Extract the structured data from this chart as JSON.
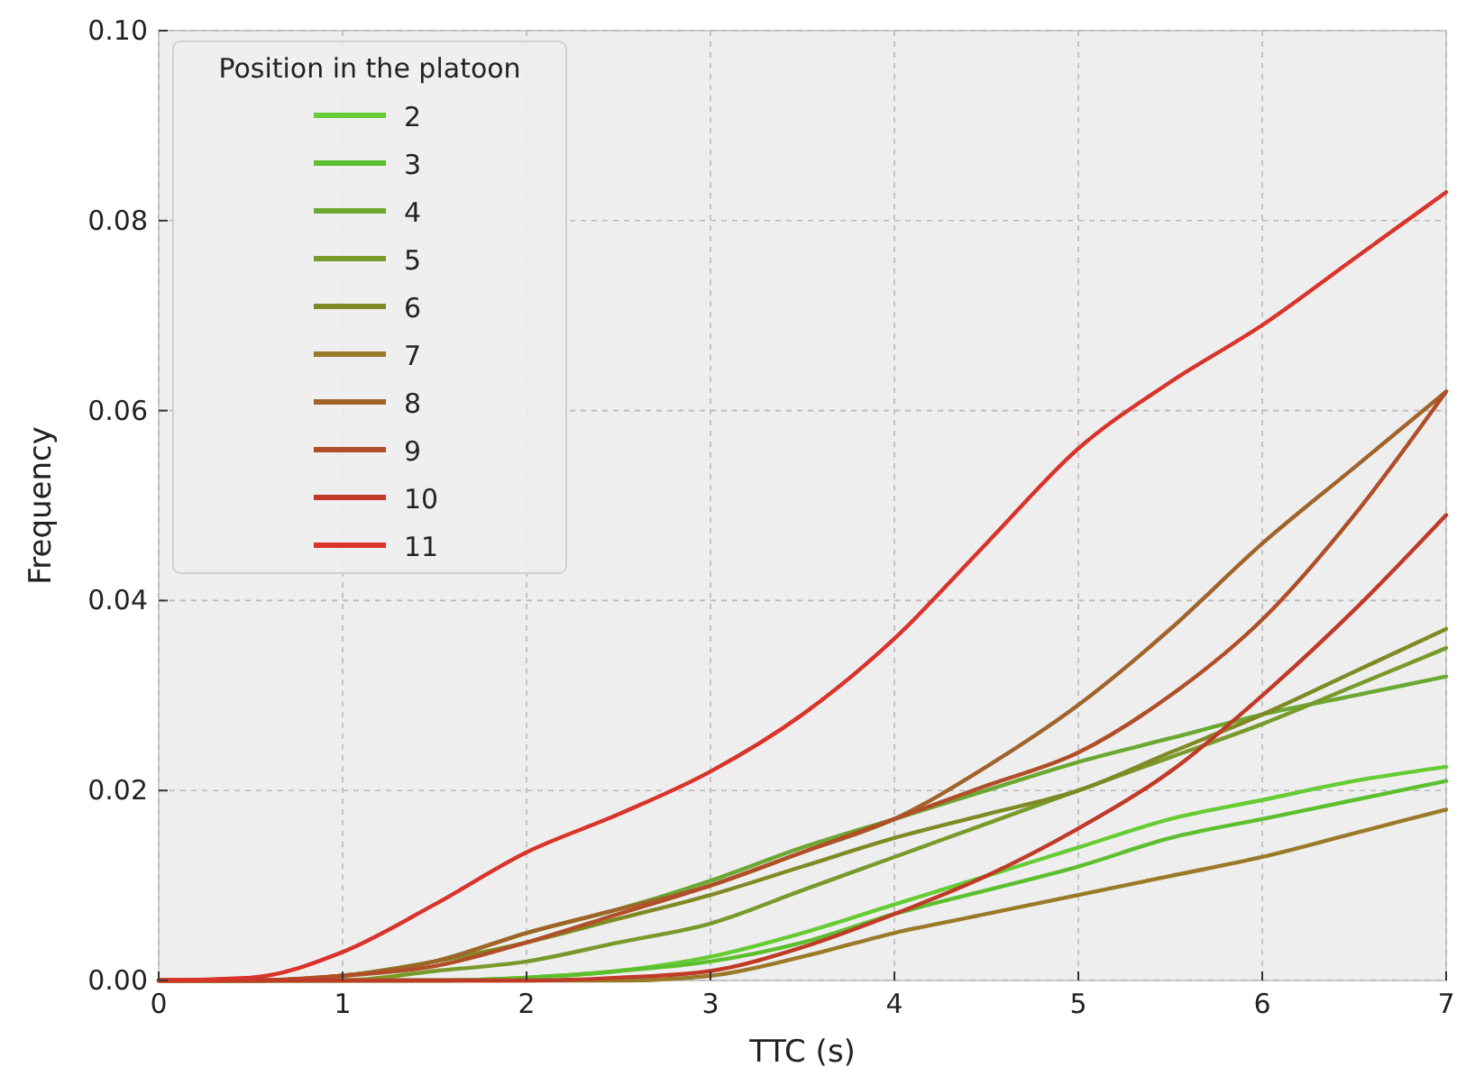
{
  "chart_data": {
    "type": "line",
    "xlabel": "TTC (s)",
    "ylabel": "Frequency",
    "legend_title": "Position in the platoon",
    "legend": "top left",
    "grid": true,
    "line_style": "solid",
    "marker": "none",
    "x": [
      0,
      0.5,
      1,
      1.5,
      2,
      2.5,
      3,
      3.5,
      4,
      4.5,
      5,
      5.5,
      6,
      6.5,
      7
    ],
    "xlim": [
      0,
      7
    ],
    "xticks": [
      0,
      1,
      2,
      3,
      4,
      5,
      6,
      7
    ],
    "ylim": [
      0,
      0.1
    ],
    "yticks": [
      {
        "value": 0,
        "label": "0.00"
      },
      {
        "value": 0.02,
        "label": "0.02"
      },
      {
        "value": 0.04,
        "label": "0.04"
      },
      {
        "value": 0.06,
        "label": "0.06"
      },
      {
        "value": 0.08,
        "label": "0.08"
      },
      {
        "value": 0.1,
        "label": "0.10"
      }
    ],
    "series": [
      {
        "name": "2",
        "color": "#66cc33",
        "values": [
          0,
          0,
          0,
          0,
          0.0003,
          0.001,
          0.0025,
          0.005,
          0.008,
          0.011,
          0.014,
          0.017,
          0.019,
          0.021,
          0.0225
        ]
      },
      {
        "name": "3",
        "color": "#5cbf2e",
        "values": [
          0,
          0,
          0,
          0,
          0.0003,
          0.001,
          0.002,
          0.004,
          0.007,
          0.0095,
          0.012,
          0.015,
          0.017,
          0.019,
          0.021
        ]
      },
      {
        "name": "4",
        "color": "#6aa832",
        "values": [
          0,
          0,
          0.0005,
          0.002,
          0.005,
          0.0075,
          0.0105,
          0.014,
          0.017,
          0.02,
          0.023,
          0.0255,
          0.028,
          0.03,
          0.032
        ]
      },
      {
        "name": "5",
        "color": "#789a2a",
        "values": [
          0,
          0,
          0,
          0.001,
          0.002,
          0.004,
          0.006,
          0.0095,
          0.013,
          0.0165,
          0.02,
          0.0235,
          0.027,
          0.031,
          0.035
        ]
      },
      {
        "name": "6",
        "color": "#7f8a24",
        "values": [
          0,
          0,
          0.0005,
          0.002,
          0.004,
          0.0065,
          0.009,
          0.012,
          0.015,
          0.0175,
          0.02,
          0.024,
          0.028,
          0.0325,
          0.037
        ]
      },
      {
        "name": "7",
        "color": "#9a7a28",
        "values": [
          0,
          0,
          0,
          0,
          0,
          0,
          0.0005,
          0.0025,
          0.005,
          0.007,
          0.009,
          0.011,
          0.013,
          0.0155,
          0.018
        ]
      },
      {
        "name": "8",
        "color": "#a0642a",
        "values": [
          0,
          0,
          0.0005,
          0.002,
          0.005,
          0.0075,
          0.01,
          0.0135,
          0.017,
          0.0225,
          0.029,
          0.037,
          0.046,
          0.054,
          0.062
        ]
      },
      {
        "name": "9",
        "color": "#b04e28",
        "values": [
          0,
          0,
          0.0005,
          0.0015,
          0.004,
          0.007,
          0.01,
          0.0135,
          0.017,
          0.0205,
          0.024,
          0.03,
          0.038,
          0.049,
          0.062
        ]
      },
      {
        "name": "10",
        "color": "#c03a28",
        "values": [
          0,
          0,
          0,
          0,
          0,
          0.0003,
          0.001,
          0.0035,
          0.007,
          0.011,
          0.016,
          0.022,
          0.03,
          0.039,
          0.049
        ]
      },
      {
        "name": "11",
        "color": "#d9332a",
        "values": [
          0,
          0.0003,
          0.003,
          0.008,
          0.0135,
          0.0175,
          0.022,
          0.028,
          0.036,
          0.046,
          0.056,
          0.063,
          0.069,
          0.076,
          0.083
        ]
      }
    ]
  }
}
